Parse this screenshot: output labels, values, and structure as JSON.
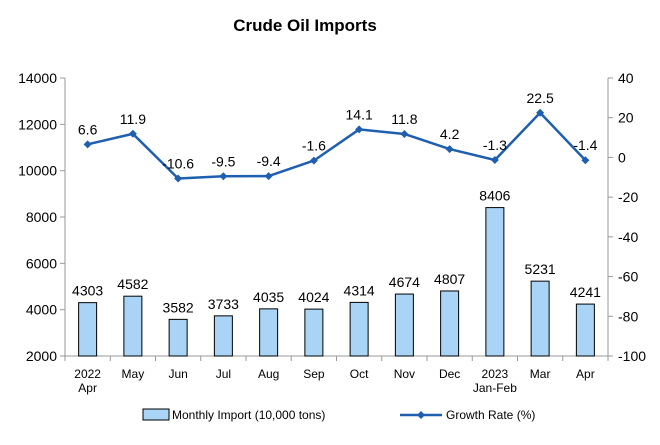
{
  "chart_data": {
    "type": "bar+line",
    "title": "Crude Oil Imports",
    "categories": [
      [
        "2022",
        "Apr"
      ],
      [
        "May"
      ],
      [
        "Jun"
      ],
      [
        "Jul"
      ],
      [
        "Aug"
      ],
      [
        "Sep"
      ],
      [
        "Oct"
      ],
      [
        "Nov"
      ],
      [
        "Dec"
      ],
      [
        "2023",
        "Jan-Feb"
      ],
      [
        "Mar"
      ],
      [
        "Apr"
      ]
    ],
    "series": [
      {
        "name": "Monthly Import (10,000 tons)",
        "type": "bar",
        "axis": "left",
        "values": [
          4303,
          4582,
          3582,
          3733,
          4035,
          4024,
          4314,
          4674,
          4807,
          8406,
          5231,
          4241
        ],
        "color": "#a9d4f5"
      },
      {
        "name": "Growth Rate (%)",
        "type": "line",
        "axis": "right",
        "values": [
          6.6,
          11.9,
          -10.6,
          -9.5,
          -9.4,
          -1.6,
          14.1,
          11.8,
          4.2,
          -1.3,
          22.5,
          -1.4
        ],
        "labels": [
          "6.6",
          "11.9",
          "-10.6",
          "-9.5",
          "-9.4",
          "-1.6",
          "14.1",
          "11.8",
          "4.2",
          "-1.3",
          "22.5",
          "-1.4"
        ],
        "color": "#1f5fb0"
      }
    ],
    "y_left": {
      "min": 2000,
      "max": 14000,
      "ticks": [
        2000,
        4000,
        6000,
        8000,
        10000,
        12000,
        14000
      ]
    },
    "y_right": {
      "min": -100,
      "max": 40,
      "ticks": [
        -100,
        -80,
        -60,
        -40,
        -20,
        0,
        20,
        40
      ]
    },
    "legend_position": "bottom",
    "grid": false
  }
}
